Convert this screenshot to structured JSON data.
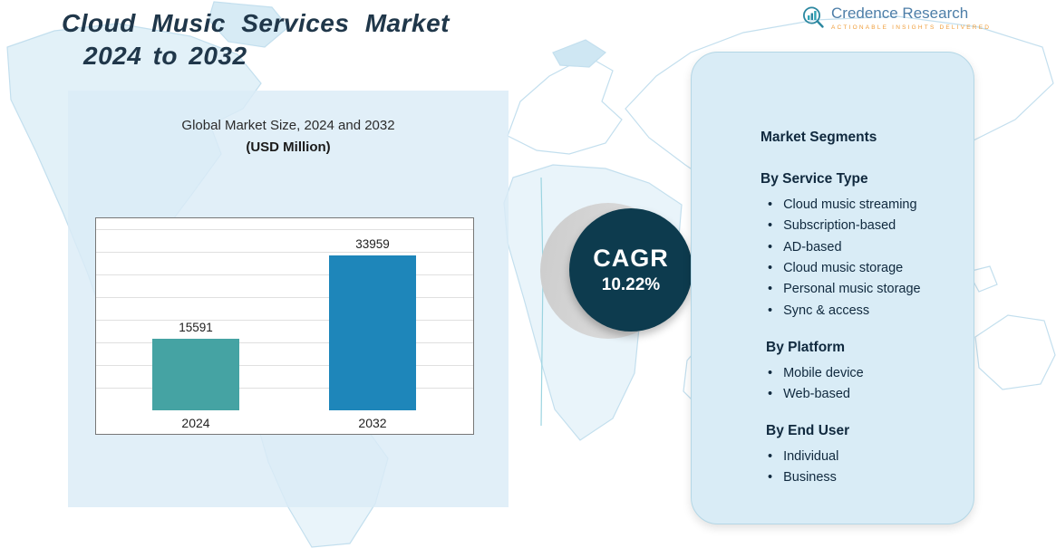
{
  "header": {
    "title_line1": "Cloud Music Services Market",
    "title_line2": "2024 to 2032"
  },
  "logo": {
    "name": "Credence Research",
    "tagline": "Actionable Insights Delivered"
  },
  "chart": {
    "title": "Global Market Size, 2024 and 2032",
    "subtitle": "(USD Million)"
  },
  "chart_data": {
    "type": "bar",
    "title": "Global Market Size, 2024 and 2032",
    "units": "USD Million",
    "categories": [
      "2024",
      "2032"
    ],
    "values": [
      15591,
      33959
    ],
    "ylim": [
      0,
      40000
    ],
    "bar_colors": [
      "#45a3a3",
      "#1e86ba"
    ],
    "grid": true,
    "legend": "none"
  },
  "cagr": {
    "label": "CAGR",
    "value": "10.22%"
  },
  "segments": {
    "title": "Market Segments",
    "groups": [
      {
        "heading": "By Service Type",
        "items": [
          "Cloud music streaming",
          "Subscription-based",
          "AD-based",
          "Cloud music storage",
          "Personal music storage",
          "Sync & access"
        ]
      },
      {
        "heading": "By Platform",
        "items": [
          "Mobile device",
          "Web-based"
        ]
      },
      {
        "heading": "By End User",
        "items": [
          "Individual",
          "Business"
        ]
      }
    ]
  },
  "colors": {
    "title_text": "#20374a",
    "panel_bg": "#d9ecf6",
    "cagr_bg": "#0d3b4e",
    "bar_2024": "#45a3a3",
    "bar_2032": "#1e86ba",
    "logo_text": "#4d7ea8",
    "logo_tagline": "#ef9d3a"
  }
}
